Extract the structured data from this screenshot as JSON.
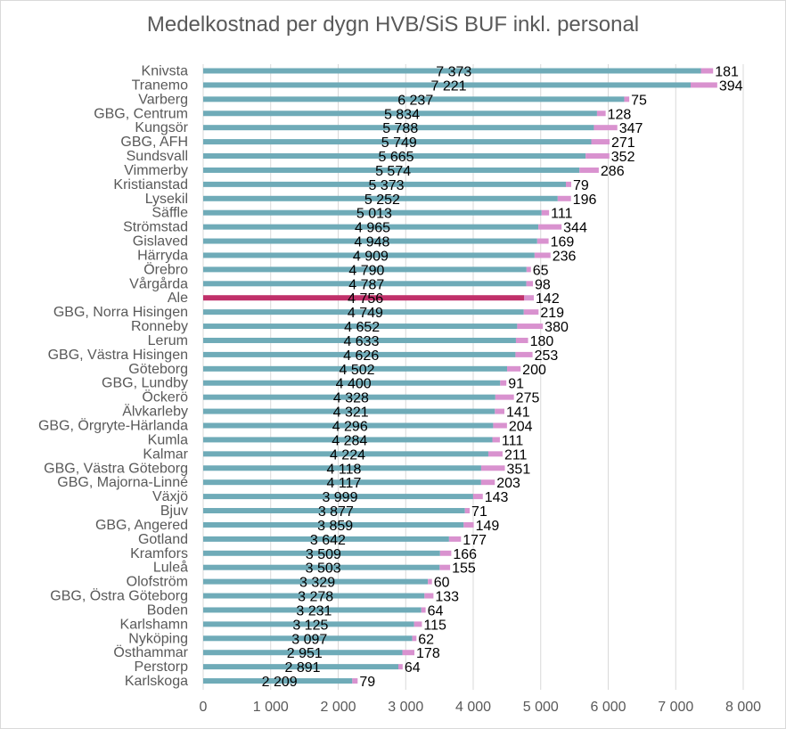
{
  "chart_data": {
    "type": "bar",
    "orientation": "horizontal",
    "stacked": true,
    "title": "Medelkostnad per dygn HVB/SiS BUF inkl. personal",
    "xlabel": "",
    "ylabel": "",
    "xlim": [
      0,
      8000
    ],
    "x_ticks": [
      "0",
      "1 000",
      "2 000",
      "3 000",
      "4 000",
      "5 000",
      "6 000",
      "7 000",
      "8 000"
    ],
    "grid": "vertical",
    "legend": "none",
    "categories": [
      "Knivsta",
      "Tranemo",
      "Varberg",
      "GBG, Centrum",
      "Kungsör",
      "GBG, AFH",
      "Sundsvall",
      "Vimmerby",
      "Kristianstad",
      "Lysekil",
      "Säffle",
      "Strömstad",
      "Gislaved",
      "Härryda",
      "Örebro",
      "Vårgårda",
      "Ale",
      "GBG, Norra Hisingen",
      "Ronneby",
      "Lerum",
      "GBG, Västra Hisingen",
      "Göteborg",
      "GBG, Lundby",
      "Öckerö",
      "Älvkarleby",
      "GBG, Örgryte-Härlanda",
      "Kumla",
      "Kalmar",
      "GBG, Västra Göteborg",
      "GBG, Majorna-Linné",
      "Växjö",
      "Bjuv",
      "GBG, Angered",
      "Gotland",
      "Kramfors",
      "Luleå",
      "Olofström",
      "GBG, Östra Göteborg",
      "Boden",
      "Karlshamn",
      "Nyköping",
      "Östhammar",
      "Perstorp",
      "Karlskoga"
    ],
    "series": [
      {
        "values": [
          7373,
          7221,
          6237,
          5834,
          5788,
          5749,
          5665,
          5574,
          5373,
          5252,
          5013,
          4965,
          4948,
          4909,
          4790,
          4787,
          4756,
          4749,
          4652,
          4633,
          4626,
          4502,
          4400,
          4328,
          4321,
          4296,
          4284,
          4224,
          4118,
          4117,
          3999,
          3877,
          3859,
          3642,
          3509,
          3503,
          3329,
          3278,
          3231,
          3125,
          3097,
          2951,
          2891,
          2209
        ],
        "labels": [
          "7 373",
          "7 221",
          "6 237",
          "5 834",
          "5 788",
          "5 749",
          "5 665",
          "5 574",
          "5 373",
          "5 252",
          "5 013",
          "4 965",
          "4 948",
          "4 909",
          "4 790",
          "4 787",
          "4 756",
          "4 749",
          "4 652",
          "4 633",
          "4 626",
          "4 502",
          "4 400",
          "4 328",
          "4 321",
          "4 296",
          "4 284",
          "4 224",
          "4 118",
          "4 117",
          "3 999",
          "3 877",
          "3 859",
          "3 642",
          "3 509",
          "3 503",
          "3 329",
          "3 278",
          "3 231",
          "3 125",
          "3 097",
          "2 951",
          "2 891",
          "2 209"
        ]
      },
      {
        "values": [
          181,
          394,
          75,
          128,
          347,
          271,
          352,
          286,
          79,
          196,
          111,
          344,
          169,
          236,
          65,
          98,
          142,
          219,
          380,
          180,
          253,
          200,
          91,
          275,
          141,
          204,
          111,
          211,
          351,
          203,
          143,
          71,
          149,
          177,
          166,
          155,
          60,
          133,
          64,
          115,
          62,
          178,
          64,
          79
        ],
        "labels": [
          "181",
          "394",
          "75",
          "128",
          "347",
          "271",
          "352",
          "286",
          "79",
          "196",
          "111",
          "344",
          "169",
          "236",
          "65",
          "98",
          "142",
          "219",
          "380",
          "180",
          "253",
          "200",
          "91",
          "275",
          "141",
          "204",
          "111",
          "211",
          "351",
          "203",
          "143",
          "71",
          "149",
          "177",
          "166",
          "155",
          "60",
          "133",
          "64",
          "115",
          "62",
          "178",
          "64",
          "79"
        ]
      }
    ],
    "highlight_category": "Ale",
    "colors": {
      "base": "#6fabb8",
      "personal": "#d992cf",
      "highlight": "#c0306a",
      "grid": "#d9d9d9"
    }
  }
}
